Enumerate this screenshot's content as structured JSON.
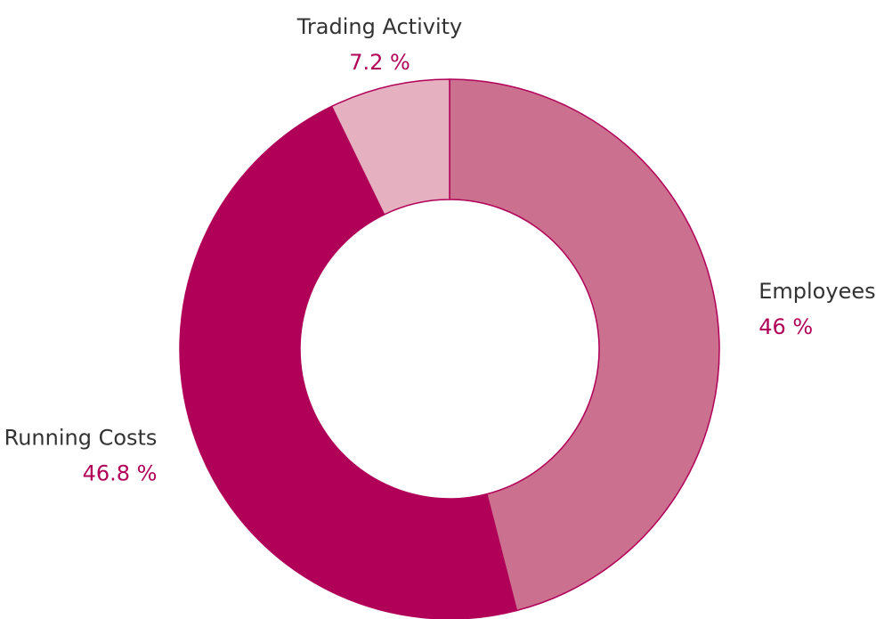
{
  "chart_data": {
    "type": "donut",
    "categories": [
      "Employees",
      "Running Costs",
      "Trading Activity"
    ],
    "values": [
      46,
      46.8,
      7.2
    ],
    "value_labels": [
      "46 %",
      "46.8 %",
      "7.2 %"
    ],
    "colors": [
      "#cc7090",
      "#b10058",
      "#e5b1c1"
    ]
  }
}
